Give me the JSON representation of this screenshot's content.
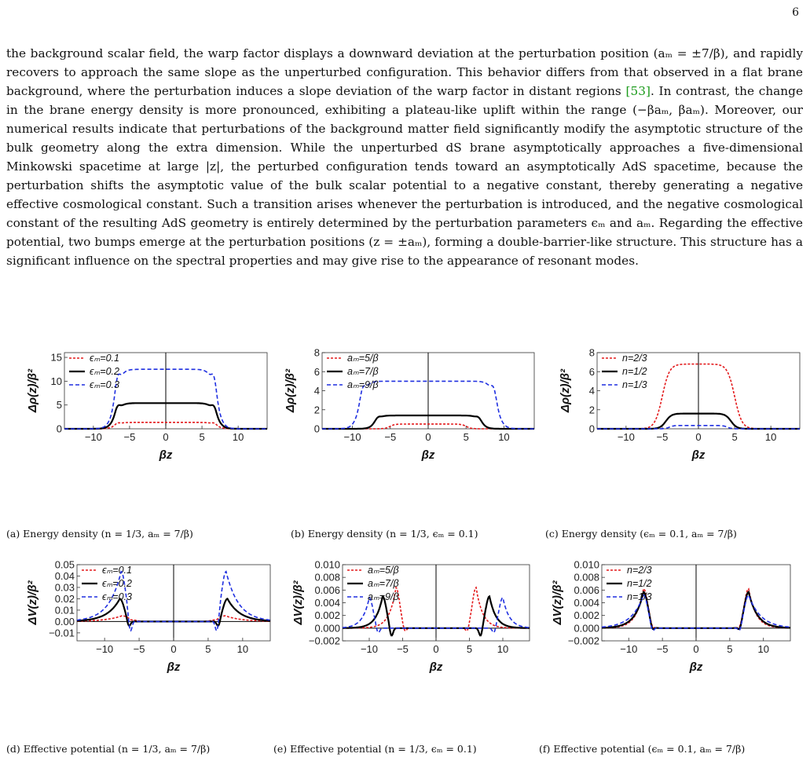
{
  "page_number": "6",
  "paragraph": {
    "before_cite": "the background scalar field, the warp factor displays a downward deviation at the perturbation position (aₘ = ±7/β), and rapidly recovers to approach the same slope as the unperturbed configuration. This behavior differs from that observed in a flat brane background, where the perturbation induces a slope deviation of the warp factor in distant regions ",
    "cite": "[53]",
    "after_cite": ". In contrast, the change in the brane energy density is more pronounced, exhibiting a plateau-like uplift within the range (−βaₘ, βaₘ). Moreover, our numerical results indicate that perturbations of the background matter field significantly modify the asymptotic structure of the bulk geometry along the extra dimension. While the unperturbed dS brane asymptotically approaches a five-dimensional Minkowski spacetime at large |z|, the perturbed configuration tends toward an asymptotically AdS spacetime, because the perturbation shifts the asymptotic value of the bulk scalar potential to a negative constant, thereby generating a negative effective cosmological constant. Such a transition arises whenever the perturbation is introduced, and the negative cosmological constant of the resulting AdS geometry is entirely determined by the perturbation parameters ϵₘ and aₘ. Regarding the effective potential, two bumps emerge at the perturbation positions (z = ±aₘ), forming a double-barrier-like structure. This structure has a significant influence on the spectral properties and may give rise to the appearance of resonant modes."
  },
  "colors": {
    "red": "#e31a1c",
    "black": "#000000",
    "blue": "#1f2fe0"
  },
  "captions": [
    "(a) Energy density (n = 1/3, aₘ = 7/β)",
    "(b) Energy density (n = 1/3, ϵₘ = 0.1)",
    "(c) Energy density (ϵₘ = 0.1, aₘ = 7/β)",
    "(d) Effective potential (n = 1/3, aₘ = 7/β)",
    "(e) Effective potential (n = 1/3, ϵₘ = 0.1)",
    "(f) Effective potential (ϵₘ = 0.1, aₘ = 7/β)"
  ],
  "chart_data": [
    {
      "type": "line",
      "xlabel": "βz",
      "ylabel": "Δρ(z)/β²",
      "xlim": [
        -14,
        14
      ],
      "ylim": [
        0,
        16
      ],
      "xticks": [
        -10,
        -5,
        0,
        5,
        10
      ],
      "yticks": [
        0,
        5,
        10,
        15
      ],
      "ytick_labels": [
        "0",
        "5",
        "10",
        "15"
      ],
      "series": [
        {
          "name": "ϵₘ=0.1",
          "color": "red",
          "dash": "dotted",
          "kind": "plateau",
          "a": 7,
          "w": 0.45,
          "h": 1.35,
          "peak": 0.3
        },
        {
          "name": "ϵₘ=0.2",
          "color": "black",
          "dash": "solid",
          "kind": "plateau",
          "a": 7,
          "w": 0.45,
          "h": 5.4,
          "peak": 1.1
        },
        {
          "name": "ϵₘ=0.3",
          "color": "blue",
          "dash": "dashed",
          "kind": "plateau",
          "a": 7,
          "w": 0.45,
          "h": 12.5,
          "peak": 2.5
        }
      ]
    },
    {
      "type": "line",
      "xlabel": "βz",
      "ylabel": "Δρ(z)/β²",
      "xlim": [
        -14,
        14
      ],
      "ylim": [
        0,
        8
      ],
      "xticks": [
        -10,
        -5,
        0,
        5,
        10
      ],
      "yticks": [
        0,
        2,
        4,
        6,
        8
      ],
      "ytick_labels": [
        "0",
        "2",
        "4",
        "6",
        "8"
      ],
      "series": [
        {
          "name": "aₘ=5/β",
          "color": "red",
          "dash": "dotted",
          "kind": "plateau",
          "a": 5,
          "w": 0.35,
          "h": 0.5,
          "peak": 0.02
        },
        {
          "name": "aₘ=7/β",
          "color": "black",
          "dash": "solid",
          "kind": "plateau",
          "a": 7,
          "w": 0.4,
          "h": 1.4,
          "peak": 0.22
        },
        {
          "name": "aₘ=9/β",
          "color": "blue",
          "dash": "dashed",
          "kind": "plateau",
          "a": 9,
          "w": 0.45,
          "h": 5.0,
          "peak": 0.9
        }
      ]
    },
    {
      "type": "line",
      "xlabel": "βz",
      "ylabel": "Δρ(z)/β²",
      "xlim": [
        -14,
        14
      ],
      "ylim": [
        0,
        8
      ],
      "xticks": [
        -10,
        -5,
        0,
        5,
        10
      ],
      "yticks": [
        0,
        2,
        4,
        6,
        8
      ],
      "ytick_labels": [
        "0",
        "2",
        "4",
        "6",
        "8"
      ],
      "series": [
        {
          "name": "n=2/3",
          "color": "red",
          "dash": "dotted",
          "kind": "plateau",
          "a": 5,
          "w": 0.5,
          "h": 6.8,
          "peak": 0.0
        },
        {
          "name": "n=1/2",
          "color": "black",
          "dash": "solid",
          "kind": "plateau",
          "a": 4.5,
          "w": 0.4,
          "h": 1.6,
          "peak": 0.0
        },
        {
          "name": "n=1/3",
          "color": "blue",
          "dash": "dashed",
          "kind": "plateau",
          "a": 4,
          "w": 0.3,
          "h": 0.35,
          "peak": 0.0
        }
      ]
    },
    {
      "type": "line",
      "xlabel": "βz",
      "ylabel": "ΔV(z)/β²",
      "xlim": [
        -14,
        14
      ],
      "ylim": [
        -0.017,
        0.05
      ],
      "xticks": [
        -10,
        -5,
        0,
        5,
        10
      ],
      "yticks": [
        -0.01,
        0,
        0.01,
        0.02,
        0.03,
        0.04,
        0.05
      ],
      "ytick_labels": [
        "−0.01",
        "0.00",
        "0.01",
        "0.02",
        "0.03",
        "0.04",
        "0.05"
      ],
      "series": [
        {
          "name": "ϵₘ=0.1",
          "color": "red",
          "dash": "dotted",
          "kind": "bump",
          "a": 7.5,
          "amp": 0.005,
          "neg": -0.001,
          "win": 1.6,
          "wout": 2.3
        },
        {
          "name": "ϵₘ=0.2",
          "color": "black",
          "dash": "solid",
          "kind": "bump",
          "a": 7.8,
          "amp": 0.02,
          "neg": -0.006,
          "win": 0.9,
          "wout": 1.8
        },
        {
          "name": "ϵₘ=0.3",
          "color": "blue",
          "dash": "dashed",
          "kind": "bump",
          "a": 7.6,
          "amp": 0.044,
          "neg": -0.013,
          "win": 0.9,
          "wout": 1.8
        }
      ]
    },
    {
      "type": "line",
      "xlabel": "βz",
      "ylabel": "ΔV(z)/β²",
      "xlim": [
        -14,
        14
      ],
      "ylim": [
        -0.002,
        0.01
      ],
      "xticks": [
        -10,
        -5,
        0,
        5,
        10
      ],
      "yticks": [
        -0.002,
        0,
        0.002,
        0.004,
        0.006,
        0.008,
        0.01
      ],
      "ytick_labels": [
        "−0.002",
        "0.000",
        "0.002",
        "0.004",
        "0.006",
        "0.008",
        "0.010"
      ],
      "series": [
        {
          "name": "aₘ=5/β",
          "color": "red",
          "dash": "dotted",
          "kind": "bump",
          "a": 6,
          "amp": 0.0064,
          "neg": -0.0008,
          "win": 0.8,
          "wout": 1.0
        },
        {
          "name": "aₘ=7/β",
          "color": "black",
          "dash": "solid",
          "kind": "bump",
          "a": 8,
          "amp": 0.005,
          "neg": -0.0015,
          "win": 0.8,
          "wout": 1.0
        },
        {
          "name": "aₘ=9/β",
          "color": "blue",
          "dash": "dashed",
          "kind": "bump",
          "a": 10,
          "amp": 0.0048,
          "neg": -0.001,
          "win": 0.8,
          "wout": 1.0
        }
      ]
    },
    {
      "type": "line",
      "xlabel": "βz",
      "ylabel": "ΔV(z)/β²",
      "xlim": [
        -14,
        14
      ],
      "ylim": [
        -0.002,
        0.01
      ],
      "xticks": [
        -10,
        -5,
        0,
        5,
        10
      ],
      "yticks": [
        -0.002,
        0,
        0.002,
        0.004,
        0.006,
        0.008,
        0.01
      ],
      "ytick_labels": [
        "−0.002",
        "0.000",
        "0.002",
        "0.004",
        "0.006",
        "0.008",
        "0.010"
      ],
      "series": [
        {
          "name": "n=2/3",
          "color": "red",
          "dash": "dotted",
          "kind": "bump",
          "a": 7.8,
          "amp": 0.0062,
          "neg": -0.0004,
          "win": 0.9,
          "wout": 1.1
        },
        {
          "name": "n=1/2",
          "color": "black",
          "dash": "solid",
          "kind": "bump",
          "a": 7.8,
          "amp": 0.0057,
          "neg": -0.0007,
          "win": 0.9,
          "wout": 1.3
        },
        {
          "name": "n=1/3",
          "color": "blue",
          "dash": "dashed",
          "kind": "bump",
          "a": 7.8,
          "amp": 0.0052,
          "neg": -0.0009,
          "win": 0.9,
          "wout": 1.8
        }
      ]
    }
  ]
}
